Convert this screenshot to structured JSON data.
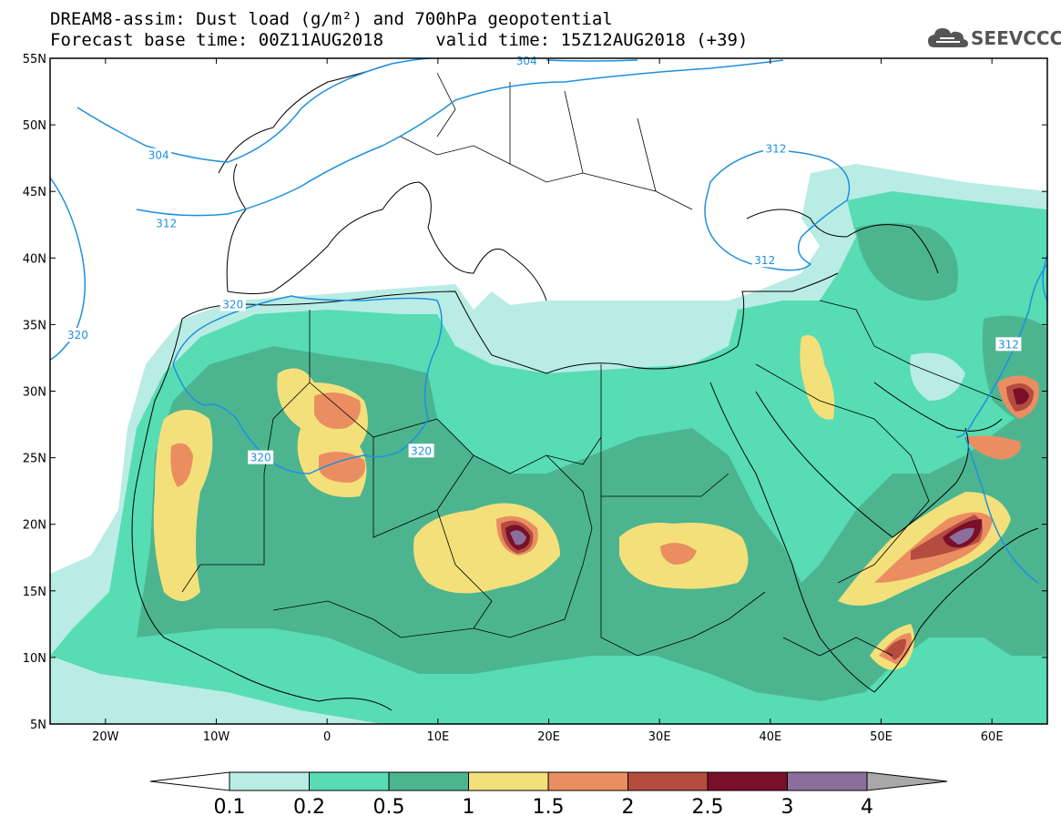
{
  "header": {
    "title_line1": "DREAM8-assim: Dust load (g/m²) and 700hPa geopotential",
    "title_line2": "Forecast base time: 00Z11AUG2018     valid time: 15Z12AUG2018 (+39)"
  },
  "logo": {
    "text": "SEEVCCC",
    "icon": "cloud-icon"
  },
  "map": {
    "lon_range": [
      -25,
      65
    ],
    "lat_range": [
      5,
      55
    ],
    "lat_ticks": [
      {
        "value": 55,
        "label": "55N"
      },
      {
        "value": 50,
        "label": "50N"
      },
      {
        "value": 45,
        "label": "45N"
      },
      {
        "value": 40,
        "label": "40N"
      },
      {
        "value": 35,
        "label": "35N"
      },
      {
        "value": 30,
        "label": "30N"
      },
      {
        "value": 25,
        "label": "25N"
      },
      {
        "value": 20,
        "label": "20N"
      },
      {
        "value": 15,
        "label": "15N"
      },
      {
        "value": 10,
        "label": "10N"
      },
      {
        "value": 5,
        "label": "5N"
      }
    ],
    "lon_ticks": [
      {
        "value": -20,
        "label": "20W"
      },
      {
        "value": -10,
        "label": "10W"
      },
      {
        "value": 0,
        "label": "0"
      },
      {
        "value": 10,
        "label": "10E"
      },
      {
        "value": 20,
        "label": "20E"
      },
      {
        "value": 30,
        "label": "30E"
      },
      {
        "value": 40,
        "label": "40E"
      },
      {
        "value": 50,
        "label": "50E"
      },
      {
        "value": 60,
        "label": "60E"
      }
    ],
    "contour_color": "#1f8fe0",
    "contour_labels": [
      {
        "text": "304",
        "lon": -15.2,
        "lat": 47.7
      },
      {
        "text": "304",
        "lon": 18.0,
        "lat": 54.8
      },
      {
        "text": "312",
        "lon": -14.5,
        "lat": 42.6
      },
      {
        "text": "312",
        "lon": 40.5,
        "lat": 48.2
      },
      {
        "text": "312",
        "lon": 39.5,
        "lat": 39.8
      },
      {
        "text": "312",
        "lon": 61.5,
        "lat": 33.5
      },
      {
        "text": "320",
        "lon": -22.5,
        "lat": 34.2
      },
      {
        "text": "320",
        "lon": -8.5,
        "lat": 36.5
      },
      {
        "text": "320",
        "lon": -6.0,
        "lat": 25.0
      },
      {
        "text": "320",
        "lon": 8.5,
        "lat": 25.5
      }
    ]
  },
  "colorbar": {
    "labels": [
      "0.1",
      "0.2",
      "0.5",
      "1",
      "1.5",
      "2",
      "2.5",
      "3",
      "4"
    ],
    "colors": [
      "#ffffff",
      "#b9ece4",
      "#57dcb4",
      "#4cb590",
      "#f4e07a",
      "#ea8e62",
      "#b44c40",
      "#7a0f2a",
      "#8c6e9c",
      "#a8a8a8"
    ]
  }
}
